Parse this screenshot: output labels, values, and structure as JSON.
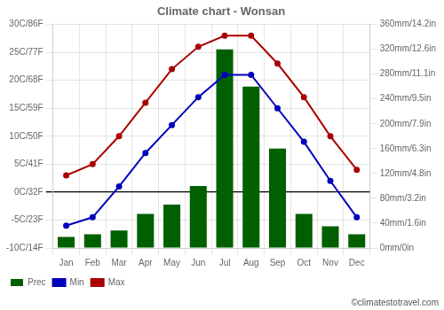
{
  "chart_data": {
    "type": "bar",
    "title": "Climate chart - Wonsan",
    "categories": [
      "Jan",
      "Feb",
      "Mar",
      "Apr",
      "May",
      "Jun",
      "Jul",
      "Aug",
      "Sep",
      "Oct",
      "Nov",
      "Dec"
    ],
    "series": [
      {
        "name": "Prec",
        "type": "bar",
        "axis": "y2",
        "color": "#006000",
        "values": [
          18,
          22,
          28,
          55,
          70,
          100,
          320,
          260,
          160,
          55,
          35,
          22
        ]
      },
      {
        "name": "Min",
        "type": "line",
        "color": "#0000bb",
        "marker": "o",
        "values": [
          -6,
          -4.5,
          1,
          7,
          12,
          17,
          21,
          21,
          15,
          9,
          2,
          -4.5
        ]
      },
      {
        "name": "Max",
        "type": "line",
        "color": "#aa0000",
        "marker": "o",
        "values": [
          3,
          5,
          10,
          16,
          22,
          26,
          28,
          28,
          23,
          17,
          10,
          4
        ]
      }
    ],
    "ylim": [
      -10,
      30
    ],
    "yticks": [
      {
        "value": -10,
        "label": "-10C/14F"
      },
      {
        "value": -5,
        "label": "-5C/23F"
      },
      {
        "value": 0,
        "label": "0C/32F"
      },
      {
        "value": 5,
        "label": "5C/41F"
      },
      {
        "value": 10,
        "label": "10C/50F"
      },
      {
        "value": 15,
        "label": "15C/59F"
      },
      {
        "value": 20,
        "label": "20C/68F"
      },
      {
        "value": 25,
        "label": "25C/77F"
      },
      {
        "value": 30,
        "label": "30C/86F"
      }
    ],
    "y2lim": [
      0,
      360
    ],
    "y2ticks": [
      {
        "value": 0,
        "label": "0mm/0in"
      },
      {
        "value": 40,
        "label": "40mm/1.6in"
      },
      {
        "value": 80,
        "label": "80mm/3.2in"
      },
      {
        "value": 120,
        "label": "120mm/4.8in"
      },
      {
        "value": 160,
        "label": "160mm/6.3in"
      },
      {
        "value": 200,
        "label": "200mm/7.9in"
      },
      {
        "value": 240,
        "label": "240mm/9.5in"
      },
      {
        "value": 280,
        "label": "280mm/11.1in"
      },
      {
        "value": 320,
        "label": "320mm/12.6in"
      },
      {
        "value": 360,
        "label": "360mm/14.2in"
      }
    ],
    "grid": true,
    "legend": "bottom",
    "annotations": [
      "©climatestotravel.com"
    ]
  }
}
